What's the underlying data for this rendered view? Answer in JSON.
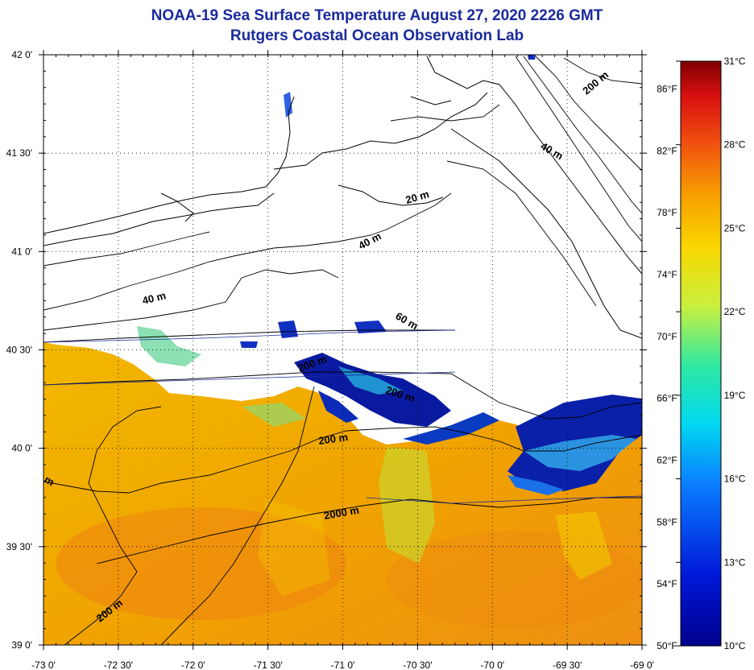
{
  "title": "NOAA-19 Sea Surface Temperature August 27, 2020 2226 GMT",
  "subtitle": "Rutgers Coastal Ocean Observation Lab",
  "lat_ticks": [
    "42 0'",
    "41 30'",
    "41 0'",
    "40 30'",
    "40 0'",
    "39 30'",
    "39 0'"
  ],
  "lon_ticks": [
    "-73 0'",
    "-72 30'",
    "-72 0'",
    "-71 30'",
    "-71 0'",
    "-70 30'",
    "-70 0'",
    "-69 30'",
    "-69 0'"
  ],
  "fahrenheit_ticks": [
    "86°F",
    "82°F",
    "78°F",
    "74°F",
    "70°F",
    "66°F",
    "62°F",
    "58°F",
    "54°F",
    "50°F"
  ],
  "celsius_ticks": [
    "31°C",
    "28°C",
    "25°C",
    "22°C",
    "19°C",
    "16°C",
    "13°C",
    "10°C"
  ],
  "contour_labels": {
    "c200_ne": "200 m",
    "c40_ne": "40 m",
    "c20": "20 m",
    "c40_mid": "40 m",
    "c40_w": "40 m",
    "c60": "60 m",
    "c200_a": "200 m",
    "c200_b": "200 m",
    "c200_c": "200 m",
    "c2000": "2000 m",
    "c200_sw": "200 m",
    "cm_w": "m"
  },
  "colors": {
    "title": "#1a2a9c",
    "ocean_warm": "#f0a800",
    "ocean_hot": "#f07a10",
    "cold_water": "#0a1aa0",
    "mid_water": "#36b8f0"
  }
}
